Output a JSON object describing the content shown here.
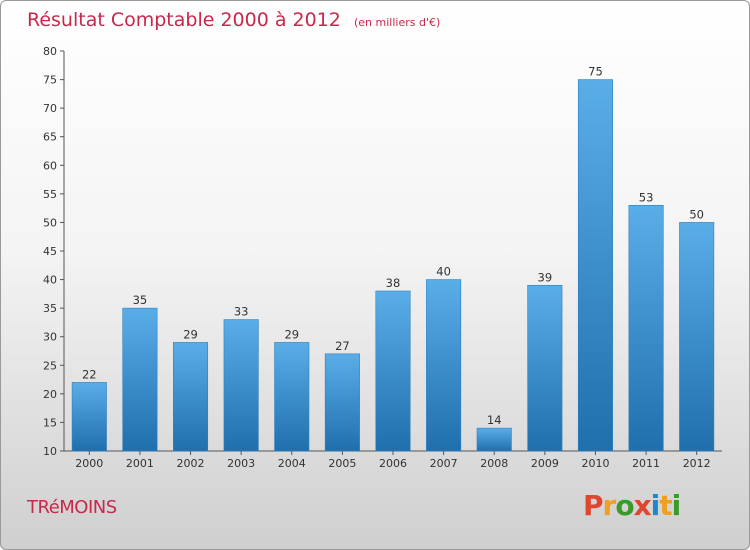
{
  "header": {
    "title": "Résultat Comptable 2000 à 2012",
    "subtitle": "(en milliers d'€)"
  },
  "footer": {
    "town": "TRéMOINS",
    "brand": "Proxiti"
  },
  "colors": {
    "title": "#c8284a",
    "bar_light": "#5aaee8",
    "bar_dark": "#1f6fad",
    "brand_letters": [
      "#e0462d",
      "#f0a020",
      "#3c9a2a",
      "#e0462d",
      "#1e88c8",
      "#f0a020",
      "#3c9a2a"
    ]
  },
  "chart_data": {
    "type": "bar",
    "categories": [
      "2000",
      "2001",
      "2002",
      "2003",
      "2004",
      "2005",
      "2006",
      "2007",
      "2008",
      "2009",
      "2010",
      "2011",
      "2012"
    ],
    "values": [
      22,
      35,
      29,
      33,
      29,
      27,
      38,
      40,
      14,
      39,
      75,
      53,
      50
    ],
    "ylim": [
      10,
      80
    ],
    "yticks": [
      10,
      15,
      20,
      25,
      30,
      35,
      40,
      45,
      50,
      55,
      60,
      65,
      70,
      75,
      80
    ],
    "grid": false,
    "data_labels": true
  }
}
